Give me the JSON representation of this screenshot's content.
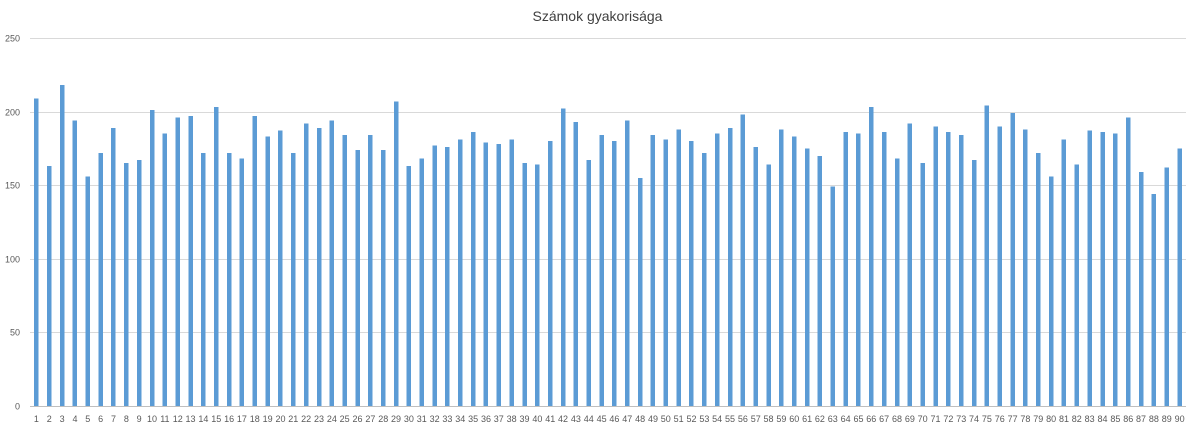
{
  "chart_data": {
    "type": "bar",
    "title": "Számok gyakorisága",
    "xlabel": "",
    "ylabel": "",
    "ylim": [
      0,
      250
    ],
    "yticks": [
      0,
      50,
      100,
      150,
      200,
      250
    ],
    "grid": true,
    "legend": "none",
    "bar_color": "#5B9BD5",
    "categories": [
      "1",
      "2",
      "3",
      "4",
      "5",
      "6",
      "7",
      "8",
      "9",
      "10",
      "11",
      "12",
      "13",
      "14",
      "15",
      "16",
      "17",
      "18",
      "19",
      "20",
      "21",
      "22",
      "23",
      "24",
      "25",
      "26",
      "27",
      "28",
      "29",
      "30",
      "31",
      "32",
      "33",
      "34",
      "35",
      "36",
      "37",
      "38",
      "39",
      "40",
      "41",
      "42",
      "43",
      "44",
      "45",
      "46",
      "47",
      "48",
      "49",
      "50",
      "51",
      "52",
      "53",
      "54",
      "55",
      "56",
      "57",
      "58",
      "59",
      "60",
      "61",
      "62",
      "63",
      "64",
      "65",
      "66",
      "67",
      "68",
      "69",
      "70",
      "71",
      "72",
      "73",
      "74",
      "75",
      "76",
      "77",
      "78",
      "79",
      "80",
      "81",
      "82",
      "83",
      "84",
      "85",
      "86",
      "87",
      "88",
      "89",
      "90"
    ],
    "values": [
      209,
      163,
      218,
      194,
      156,
      172,
      189,
      165,
      167,
      201,
      185,
      196,
      197,
      172,
      203,
      172,
      168,
      197,
      183,
      187,
      172,
      192,
      189,
      194,
      184,
      174,
      184,
      174,
      207,
      163,
      168,
      177,
      176,
      181,
      186,
      179,
      178,
      181,
      165,
      164,
      180,
      202,
      193,
      167,
      184,
      180,
      194,
      155,
      184,
      181,
      188,
      180,
      172,
      185,
      189,
      198,
      176,
      164,
      188,
      183,
      175,
      170,
      149,
      186,
      185,
      203,
      186,
      168,
      192,
      165,
      190,
      186,
      184,
      167,
      204,
      190,
      199,
      188,
      172,
      156,
      181,
      164,
      187,
      186,
      185,
      196,
      159,
      144,
      162,
      175
    ]
  }
}
